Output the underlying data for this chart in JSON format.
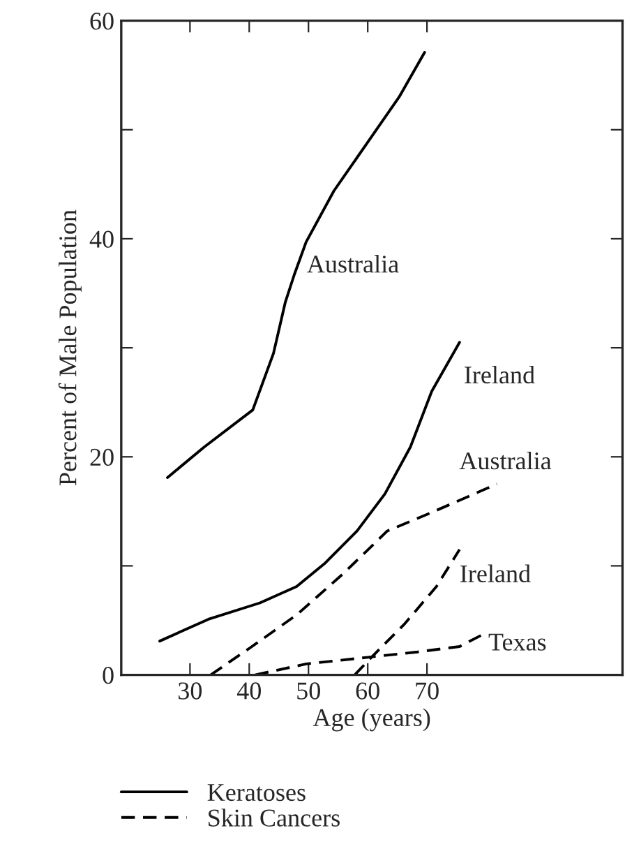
{
  "chart_data": {
    "type": "line",
    "xlabel": "Age (years)",
    "ylabel": "Percent of Male Population",
    "xlim": [
      18.4,
      103
    ],
    "xticks": [
      30,
      40,
      50,
      60,
      70
    ],
    "ylim": [
      0,
      60
    ],
    "yticks": [
      0,
      {
        "value": 10,
        "label": null
      },
      20,
      {
        "value": 30,
        "label": null
      },
      40,
      {
        "value": 50,
        "label": null
      },
      60
    ],
    "grid": false,
    "legend": "bottom",
    "marker": "none",
    "series": [
      {
        "name": "Keratoses",
        "color": "#000000",
        "line_style": "solid",
        "x": [
          26.2,
          32.4,
          40.6,
          44.1,
          46.1,
          47.6,
          49.6,
          54.3,
          59.8,
          65.3,
          69.6
        ],
        "values": [
          18.1,
          20.9,
          24.3,
          29.5,
          34.2,
          36.7,
          39.7,
          44.4,
          48.7,
          53.0,
          57.1
        ]
      },
      {
        "color": "#000000",
        "line_style": "solid",
        "x": [
          24.9,
          33.1,
          41.8,
          48.0,
          52.7,
          58.2,
          62.9,
          67.2,
          70.8,
          75.5
        ],
        "values": [
          3.1,
          5.1,
          6.6,
          8.1,
          10.2,
          13.2,
          16.6,
          20.9,
          26.0,
          30.5
        ]
      },
      {
        "name": "Skin Cancers",
        "color": "#000000",
        "line_style": "dashed",
        "x": [
          33.5,
          40.2,
          48.0,
          55.9,
          63.3,
          70.8,
          81.8
        ],
        "values": [
          0,
          2.5,
          5.5,
          9.3,
          13.2,
          14.9,
          17.5
        ]
      },
      {
        "color": "#000000",
        "line_style": "dashed",
        "x": [
          57.8,
          60.6,
          66.1,
          71.6,
          75.5
        ],
        "values": [
          0,
          1.6,
          4.6,
          8.1,
          11.5
        ]
      },
      {
        "color": "#000000",
        "line_style": "dashed",
        "x": [
          41.0,
          49.6,
          59.8,
          68.4,
          75.5,
          79.4
        ],
        "values": [
          0,
          1.0,
          1.6,
          2.1,
          2.6,
          3.7
        ]
      }
    ],
    "annotations": [
      {
        "text": "Australia",
        "x": 47.6,
        "y": 36.7
      },
      {
        "text": "Ireland",
        "x": 75.5,
        "y": 30.5
      },
      {
        "text": "Australia",
        "x": 81.8,
        "y": 17.5
      },
      {
        "text": "Ireland",
        "x": 75.5,
        "y": 11.5
      },
      {
        "text": "Texas",
        "x": 79.4,
        "y": 3.7
      }
    ]
  }
}
